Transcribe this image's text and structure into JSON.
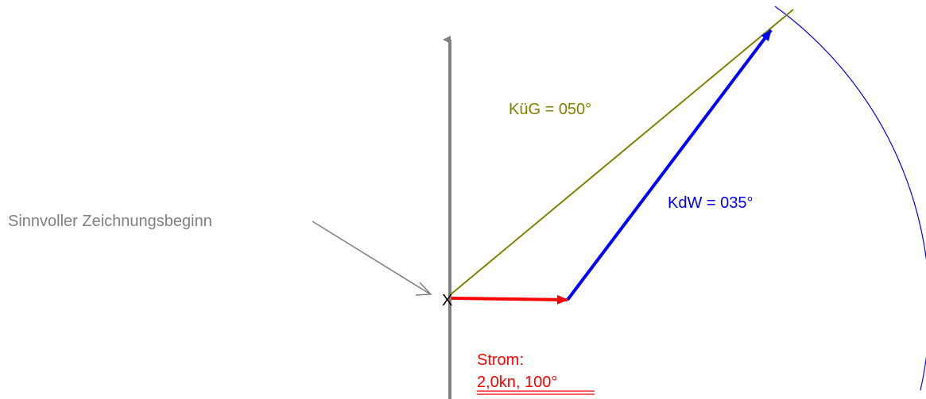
{
  "labels": {
    "course_over_ground": "KüG = 050°",
    "course_through_water": "KdW = 035°",
    "start_hint": "Sinnvoller Zeichnungsbeginn",
    "start_mark": "X",
    "current_title": "Strom:",
    "current_value": "2,0kn, 100°"
  }
}
